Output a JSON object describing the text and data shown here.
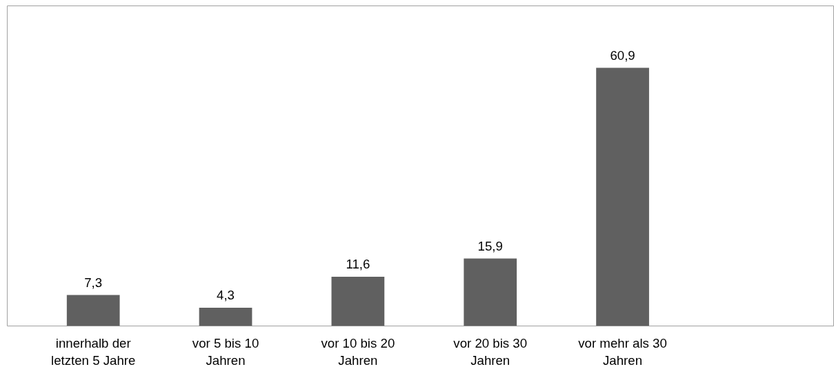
{
  "chart_data": {
    "type": "bar",
    "categories": [
      "innerhalb der letzten 5 Jahre",
      "vor 5 bis 10 Jahren",
      "vor 10 bis 20 Jahren",
      "vor 20 bis 30 Jahren",
      "vor mehr als 30 Jahren"
    ],
    "values": [
      7.3,
      4.3,
      11.6,
      15.9,
      60.9
    ],
    "value_labels": [
      "7,3",
      "4,3",
      "11,6",
      "15,9",
      "60,9"
    ],
    "color": "#606060",
    "grid": false
  }
}
